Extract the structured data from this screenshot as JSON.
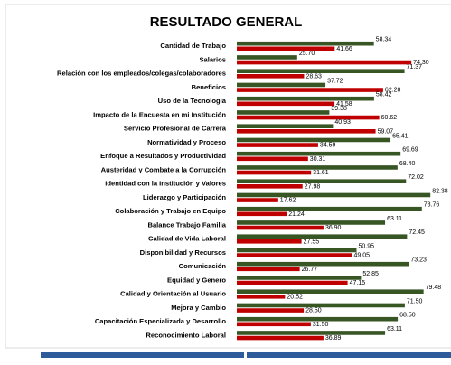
{
  "chart_data": {
    "type": "bar",
    "orientation": "horizontal",
    "title": "RESULTADO GENERAL",
    "categories": [
      "Cantidad de Trabajo",
      "Salarios",
      "Relación con los empleados/colegas/colaboradores",
      "Beneficios",
      "Uso de la Tecnología",
      "Impacto de la Encuesta en mi Institución",
      "Servicio Profesional de Carrera",
      "Normatividad y Proceso",
      "Enfoque a Resultados y Productividad",
      "Austeridad y Combate a la Corrupción",
      "Identidad con la Institución y Valores",
      "Liderazgo y Participación",
      "Colaboración y Trabajo en Equipo",
      "Balance Trabajo Familia",
      "Calidad de Vida Laboral",
      "Disponibilidad y Recursos",
      "Comunicación",
      "Equidad y Genero",
      "Calidad y Orientación al Usuario",
      "Mejora y Cambio",
      "Capacitación Especializada y Desarrollo",
      "Reconocimiento Laboral"
    ],
    "series": [
      {
        "color": "#375623",
        "values": [
          58.34,
          25.7,
          71.37,
          37.72,
          58.42,
          39.38,
          40.93,
          65.41,
          69.69,
          68.4,
          72.02,
          82.38,
          78.76,
          63.11,
          72.45,
          50.95,
          73.23,
          52.85,
          79.48,
          71.5,
          68.5,
          63.11
        ],
        "value_labels": [
          "58.34",
          "25.70",
          "71.37",
          "37.72",
          "58.42",
          "39.38",
          "40.93",
          "65.41",
          "69.69",
          "68.40",
          "72.02",
          "82.38",
          "78.76",
          "63.11",
          "72.45",
          "50.95",
          "73.23",
          "52.85",
          "79.48",
          "71.50",
          "68.50",
          "63.11"
        ]
      },
      {
        "color": "#c00000",
        "values": [
          41.66,
          74.3,
          28.63,
          62.28,
          41.58,
          60.62,
          59.07,
          34.59,
          30.31,
          31.61,
          27.98,
          17.62,
          21.24,
          36.9,
          27.55,
          49.05,
          26.77,
          47.15,
          20.52,
          28.5,
          31.5,
          36.89
        ],
        "value_labels": [
          "41.66",
          "74.30",
          "28.63",
          "62.28",
          "41.58",
          "60.62",
          "59.07",
          "34.59",
          "30.31",
          "31.61",
          "27.98",
          "17.62",
          "21.24",
          "36.90",
          "27.55",
          "49.05",
          "26.77",
          "47.15",
          "20.52",
          "28.50",
          "31.50",
          "36.89"
        ]
      }
    ],
    "xlim": [
      0,
      90
    ]
  }
}
